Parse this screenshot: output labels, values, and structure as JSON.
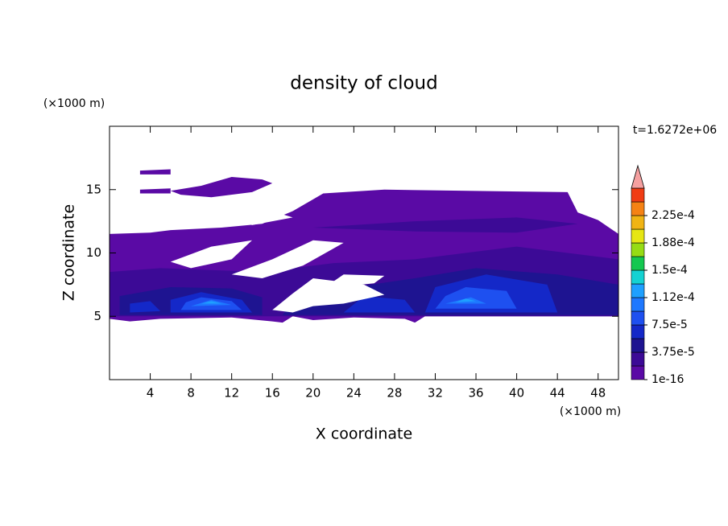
{
  "chart_data": {
    "type": "contour",
    "title": "density of cloud",
    "x_label": "X coordinate",
    "y_label": "Z coordinate",
    "x_unit": "(×1000 m)",
    "y_unit": "(×1000 m)",
    "time_label": "t=1.6272e+06",
    "xlim": [
      0,
      50
    ],
    "xticks": [
      4,
      8,
      12,
      16,
      20,
      24,
      28,
      32,
      36,
      40,
      44,
      48
    ],
    "ylim": [
      0,
      20
    ],
    "yticks": [
      5,
      10,
      15
    ],
    "colorbar": {
      "levels": [
        1e-16,
        1.875e-05,
        3.75e-05,
        5.625e-05,
        7.5e-05,
        9.375e-05,
        0.0001125,
        0.00013125,
        0.00015,
        0.00016875,
        0.0001875,
        0.00020625,
        0.000225,
        0.00024375,
        0.0002625
      ],
      "colors": [
        "#5a0aa5",
        "#3c0a96",
        "#1e1491",
        "#1428c8",
        "#1e50f0",
        "#1e78ff",
        "#1ea0ff",
        "#14d2d2",
        "#14c850",
        "#96dc14",
        "#e6e614",
        "#f0b414",
        "#f58214",
        "#f03c14"
      ],
      "over_color": "#f5a0a0",
      "ticks": [
        1e-16,
        {
          "value": 3.75e-05,
          "label": "3.75e-5"
        },
        {
          "value": 7.5e-05,
          "label": "7.5e-5"
        },
        {
          "value": 0.0001125,
          "label": "1.12e-4"
        },
        {
          "value": 0.00015,
          "label": "1.5e-4"
        },
        {
          "value": 0.0001875,
          "label": "1.88e-4"
        },
        {
          "value": 0.000225,
          "label": "2.25e-4"
        }
      ]
    }
  }
}
